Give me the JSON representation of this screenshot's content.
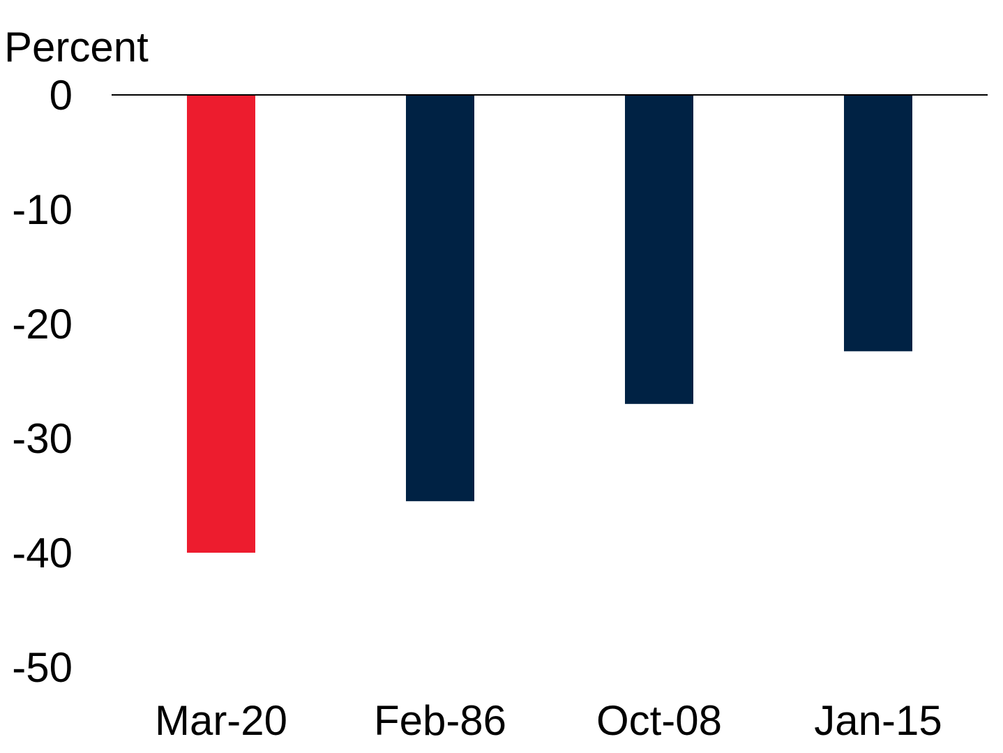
{
  "chart_data": {
    "type": "bar",
    "title": "",
    "ylabel": "Percent",
    "xlabel": "",
    "categories": [
      "Mar-20",
      "Feb-86",
      "Oct-08",
      "Jan-15"
    ],
    "values": [
      -40,
      -35.5,
      -27,
      -22.4
    ],
    "ylim": [
      -50,
      0
    ],
    "yticks": [
      0,
      -10,
      -20,
      -30,
      -40,
      -50
    ],
    "grid": false,
    "legend": "none",
    "colors": [
      "#ED1C2E",
      "#002244",
      "#002244",
      "#002244"
    ],
    "zero_line_color": "#000000"
  }
}
